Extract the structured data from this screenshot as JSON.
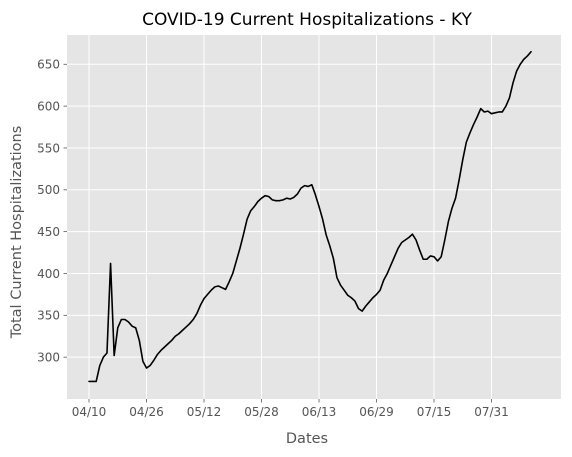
{
  "chart_data": {
    "type": "line",
    "title": "COVID-19 Current Hospitalizations - KY",
    "xlabel": "Dates",
    "ylabel": "Total Current Hospitalizations",
    "x_ticks": [
      "04/10",
      "04/26",
      "05/12",
      "05/28",
      "06/13",
      "06/29",
      "07/15",
      "07/31"
    ],
    "y_ticks": [
      300,
      350,
      400,
      450,
      500,
      550,
      600,
      650
    ],
    "x_start": "04/10",
    "ylim": [
      250,
      685
    ],
    "grid": true,
    "style": "ggplot",
    "colors": {
      "panel": "#e5e5e5",
      "grid": "#ffffff",
      "line": "#000000",
      "text": "#555555"
    },
    "series": [
      {
        "values": [
          271,
          271,
          271,
          290,
          300,
          305,
          412,
          302,
          335,
          345,
          345,
          342,
          337,
          335,
          320,
          295,
          287,
          290,
          296,
          303,
          308,
          312,
          316,
          320,
          325,
          328,
          332,
          336,
          340,
          345,
          352,
          362,
          370,
          375,
          380,
          384,
          385,
          383,
          381,
          390,
          400,
          415,
          430,
          447,
          465,
          475,
          480,
          486,
          490,
          493,
          492,
          488,
          487,
          487,
          488,
          490,
          489,
          491,
          495,
          502,
          505,
          504,
          506,
          494,
          480,
          465,
          446,
          433,
          418,
          395,
          386,
          380,
          374,
          371,
          367,
          358,
          355,
          361,
          366,
          371,
          375,
          380,
          392,
          400,
          410,
          420,
          430,
          437,
          440,
          443,
          447,
          440,
          428,
          417,
          417,
          421,
          420,
          415,
          420,
          440,
          462,
          478,
          490,
          512,
          536,
          557,
          568,
          578,
          587,
          597,
          593,
          594,
          591,
          592,
          593,
          593,
          600,
          610,
          628,
          642,
          650,
          656,
          660,
          665
        ]
      }
    ]
  }
}
